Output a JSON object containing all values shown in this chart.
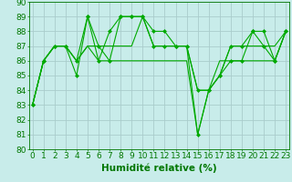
{
  "xlabel": "Humidité relative (%)",
  "bg_color": "#c8ecea",
  "grid_color": "#aacccc",
  "line_color": "#00aa00",
  "marker_color": "#00aa00",
  "xlim": [
    0,
    23
  ],
  "ylim": [
    80,
    90
  ],
  "yticks": [
    80,
    81,
    82,
    83,
    84,
    85,
    86,
    87,
    88,
    89,
    90
  ],
  "xticks": [
    0,
    1,
    2,
    3,
    4,
    5,
    6,
    7,
    8,
    9,
    10,
    11,
    12,
    13,
    14,
    15,
    16,
    17,
    18,
    19,
    20,
    21,
    22,
    23
  ],
  "lines": [
    {
      "y": [
        83,
        86,
        87,
        87,
        86,
        89,
        86,
        88,
        89,
        89,
        89,
        88,
        88,
        87,
        87,
        81,
        84,
        85,
        86,
        86,
        88,
        87,
        86,
        88
      ],
      "ls": "-",
      "marker": true
    },
    {
      "y": [
        83,
        86,
        87,
        87,
        85,
        89,
        87,
        86,
        89,
        89,
        89,
        87,
        87,
        87,
        87,
        84,
        84,
        85,
        87,
        87,
        88,
        88,
        86,
        88
      ],
      "ls": "-",
      "marker": true
    },
    {
      "y": [
        83,
        86,
        87,
        87,
        86,
        87,
        87,
        87,
        87,
        87,
        89,
        87,
        87,
        87,
        87,
        84,
        84,
        85,
        87,
        87,
        87,
        87,
        87,
        88
      ],
      "ls": "-",
      "marker": false
    },
    {
      "y": [
        83,
        86,
        87,
        87,
        86,
        87,
        86,
        86,
        86,
        86,
        86,
        86,
        86,
        86,
        86,
        81,
        84,
        86,
        86,
        86,
        86,
        86,
        86,
        88
      ],
      "ls": "-",
      "marker": false
    }
  ],
  "tick_fontsize": 6.5,
  "label_fontsize": 7.5,
  "font_color": "#007700"
}
